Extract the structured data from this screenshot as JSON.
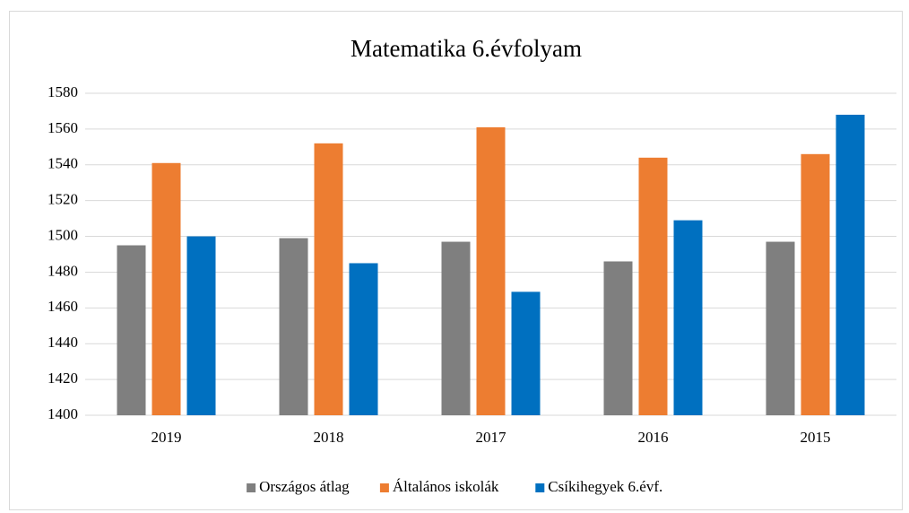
{
  "chart_data": {
    "type": "bar",
    "title": "Matematika 6.évfolyam",
    "categories": [
      "2019",
      "2018",
      "2017",
      "2016",
      "2015"
    ],
    "series": [
      {
        "name": "Országos átlag",
        "color": "#7f7f7f",
        "values": [
          1495,
          1499,
          1497,
          1486,
          1497
        ]
      },
      {
        "name": "Általános iskolák",
        "color": "#ed7d31",
        "values": [
          1541,
          1552,
          1561,
          1544,
          1546
        ]
      },
      {
        "name": "Csíkihegyek 6.évf.",
        "color": "#0070c0",
        "values": [
          1500,
          1485,
          1469,
          1509,
          1568
        ]
      }
    ],
    "ylim": [
      1400,
      1580
    ],
    "yticks": [
      1400,
      1420,
      1440,
      1460,
      1480,
      1500,
      1520,
      1540,
      1560,
      1580
    ],
    "grid": true,
    "legend": "bottom"
  }
}
